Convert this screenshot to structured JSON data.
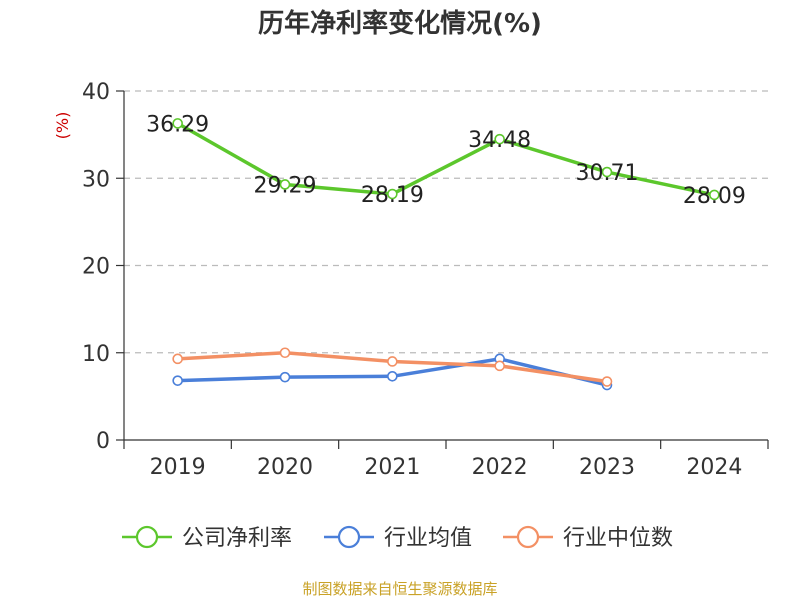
{
  "chart_data": {
    "type": "line",
    "title": "历年净利率变化情况(%)",
    "ylabel": "(%)",
    "xlabel": "",
    "categories": [
      "2019",
      "2020",
      "2021",
      "2022",
      "2023",
      "2024"
    ],
    "ylim": [
      0,
      40
    ],
    "yticks": [
      "0",
      "10",
      "20",
      "30",
      "40"
    ],
    "grid": true,
    "legend_position": "bottom",
    "series": [
      {
        "name": "公司净利率",
        "color": "#5cc72c",
        "values": [
          36.29,
          29.29,
          28.19,
          34.48,
          30.71,
          28.09
        ],
        "labels": [
          "36.29",
          "29.29",
          "28.19",
          "34.48",
          "30.71",
          "28.09"
        ]
      },
      {
        "name": "行业均值",
        "color": "#4a7fd9",
        "values": [
          6.8,
          7.2,
          7.3,
          9.3,
          6.3,
          null
        ]
      },
      {
        "name": "行业中位数",
        "color": "#f39064",
        "values": [
          9.3,
          10.0,
          9.0,
          8.5,
          6.7,
          null
        ]
      }
    ]
  },
  "source": "制图数据来自恒生聚源数据库"
}
